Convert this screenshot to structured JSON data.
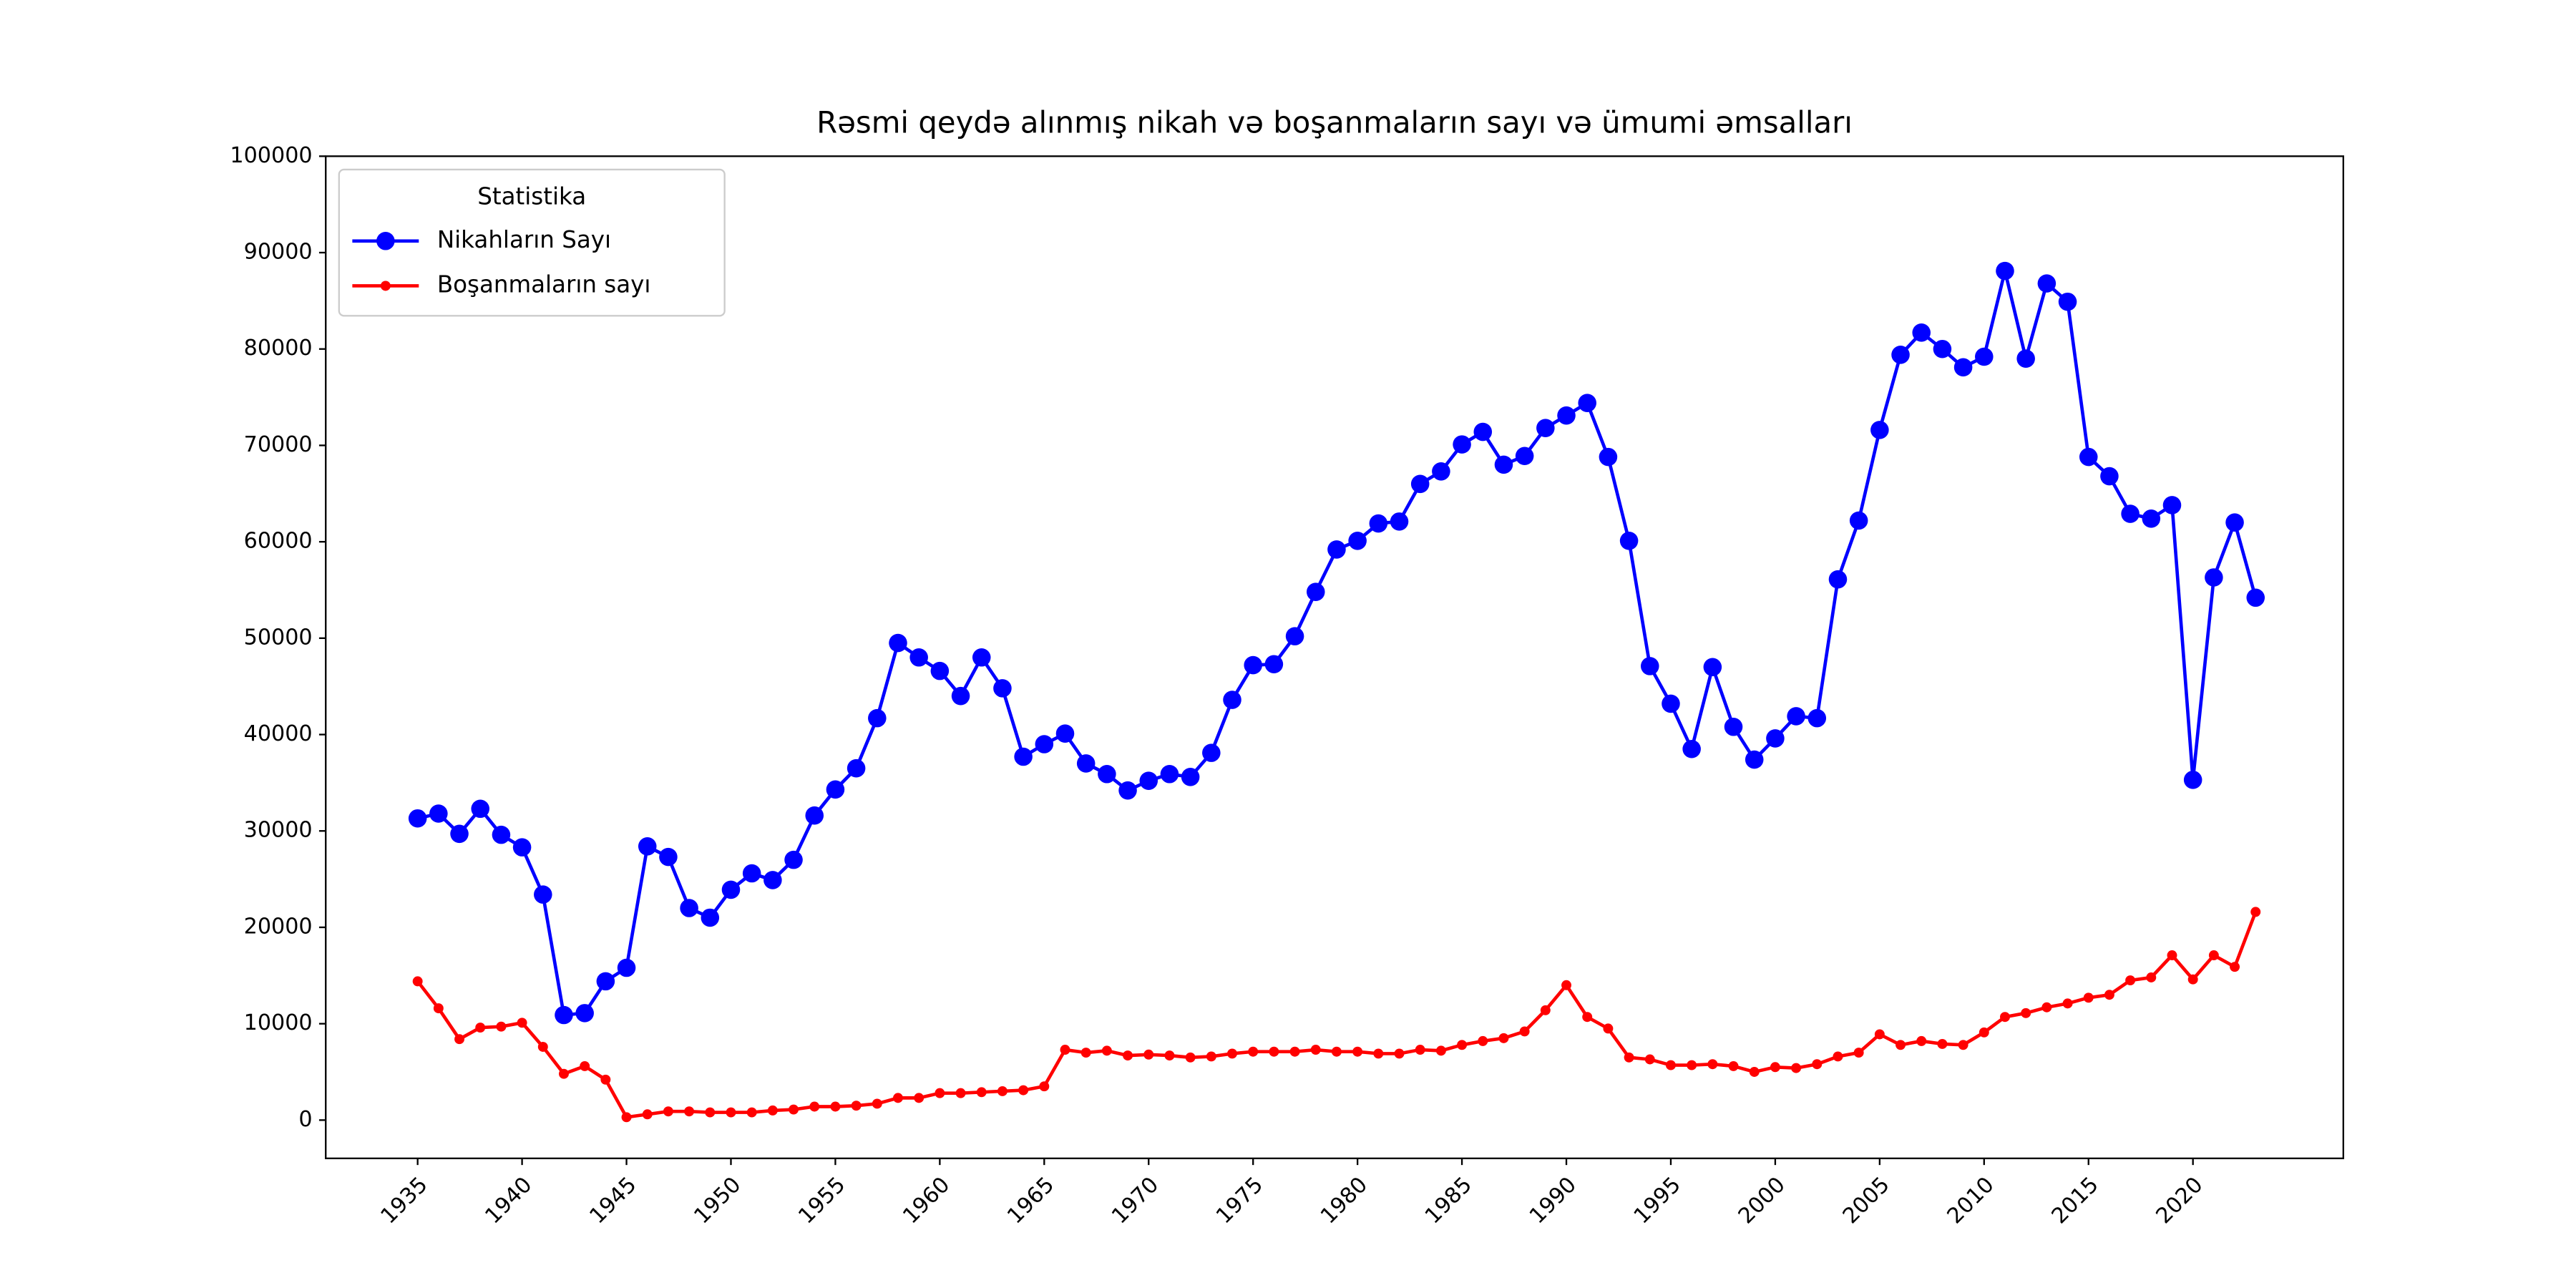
{
  "chart_data": {
    "type": "line",
    "title": "Rəsmi qeydə alınmış nikah və boşanmaların sayı və ümumi əmsalları",
    "legend_title": "Statistika",
    "legend": "upper left",
    "grid": false,
    "x": [
      1935,
      1936,
      1937,
      1938,
      1939,
      1940,
      1941,
      1942,
      1943,
      1944,
      1945,
      1946,
      1947,
      1948,
      1949,
      1950,
      1951,
      1952,
      1953,
      1954,
      1955,
      1956,
      1957,
      1958,
      1959,
      1960,
      1961,
      1962,
      1963,
      1964,
      1965,
      1966,
      1967,
      1968,
      1969,
      1970,
      1971,
      1972,
      1973,
      1974,
      1975,
      1976,
      1977,
      1978,
      1979,
      1980,
      1981,
      1982,
      1983,
      1984,
      1985,
      1986,
      1987,
      1988,
      1989,
      1990,
      1991,
      1992,
      1993,
      1994,
      1995,
      1996,
      1997,
      1998,
      1999,
      2000,
      2001,
      2002,
      2003,
      2004,
      2005,
      2006,
      2007,
      2008,
      2009,
      2010,
      2011,
      2012,
      2013,
      2014,
      2015,
      2016,
      2017,
      2018,
      2019,
      2020,
      2021,
      2022,
      2023
    ],
    "series": [
      {
        "name": "Nikahların Sayı",
        "color": "#0000ff",
        "marker_size": 5.5,
        "values": [
          31300,
          31800,
          29700,
          32300,
          29600,
          28300,
          23400,
          10900,
          11100,
          14400,
          15800,
          28400,
          27300,
          22000,
          21000,
          23900,
          25600,
          24900,
          27000,
          31600,
          34300,
          36500,
          41700,
          49500,
          48000,
          46600,
          44000,
          48000,
          44800,
          37700,
          39000,
          40100,
          37000,
          35900,
          34200,
          35200,
          35900,
          35600,
          38100,
          43600,
          47200,
          47300,
          50200,
          54800,
          59200,
          60100,
          61900,
          62100,
          66000,
          67300,
          70100,
          71400,
          68000,
          68900,
          71800,
          73100,
          74400,
          68800,
          60100,
          47100,
          43200,
          38500,
          47000,
          40800,
          37400,
          39600,
          41900,
          41700,
          56100,
          62200,
          71600,
          79400,
          81700,
          80000,
          78100,
          79200,
          88100,
          79000,
          86800,
          84900,
          68800,
          66800,
          62900,
          62400,
          63800,
          35300,
          56300,
          62000,
          54200
        ]
      },
      {
        "name": "Boşanmaların sayı",
        "color": "#ff0000",
        "marker_size": 3,
        "values": [
          14400,
          11600,
          8400,
          9600,
          9700,
          10100,
          7600,
          4800,
          5600,
          4200,
          300,
          600,
          900,
          900,
          800,
          800,
          800,
          1000,
          1100,
          1400,
          1400,
          1500,
          1700,
          2300,
          2300,
          2800,
          2800,
          2900,
          3000,
          3100,
          3500,
          7300,
          7000,
          7200,
          6700,
          6800,
          6700,
          6500,
          6600,
          6900,
          7100,
          7100,
          7100,
          7300,
          7100,
          7100,
          6900,
          6900,
          7300,
          7200,
          7800,
          8200,
          8500,
          9200,
          11400,
          14000,
          10700,
          9500,
          6500,
          6300,
          5700,
          5700,
          5800,
          5600,
          5000,
          5500,
          5400,
          5800,
          6600,
          7000,
          8900,
          7800,
          8200,
          7900,
          7800,
          9100,
          10700,
          11100,
          11700,
          12100,
          12700,
          13000,
          14500,
          14800,
          17100,
          14600,
          17100,
          15900,
          21600
        ]
      }
    ],
    "xlim": [
      1930.6,
      2027.2
    ],
    "ylim": [
      -3970,
      100000
    ],
    "xticks": [
      1935,
      1940,
      1945,
      1950,
      1955,
      1960,
      1965,
      1970,
      1975,
      1980,
      1985,
      1990,
      1995,
      2000,
      2005,
      2010,
      2015,
      2020
    ],
    "yticks": [
      0,
      10000,
      20000,
      30000,
      40000,
      50000,
      60000,
      70000,
      80000,
      90000,
      100000
    ]
  }
}
